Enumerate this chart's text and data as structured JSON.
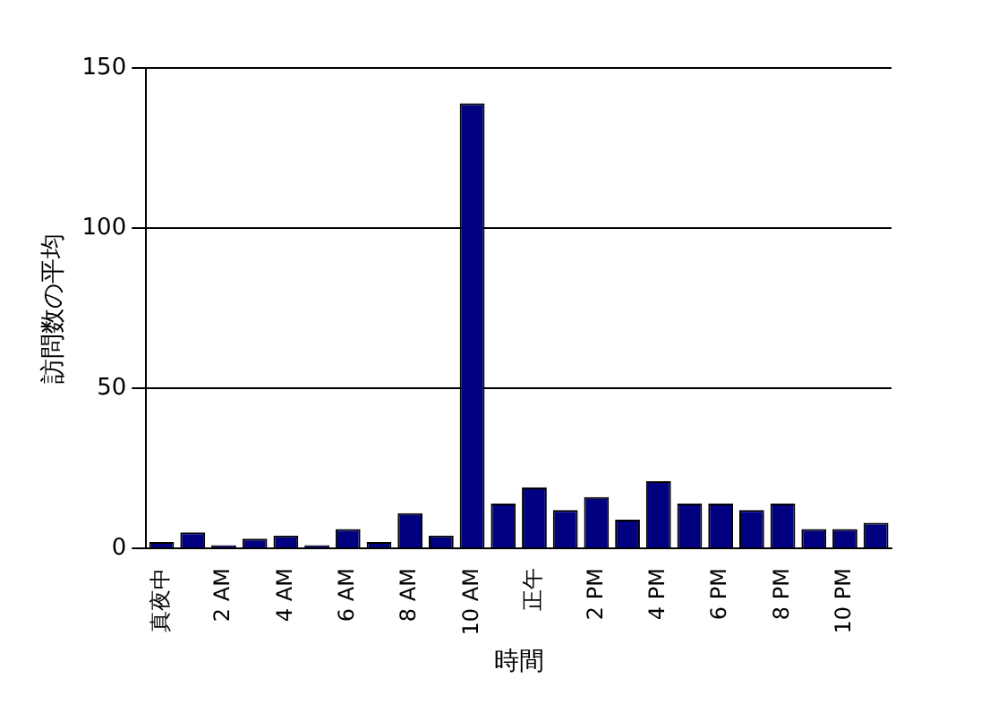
{
  "chart_data": {
    "type": "bar",
    "xlabel": "時間",
    "ylabel": "訪問数の平均",
    "categories": [
      "真夜中",
      null,
      "2 AM",
      null,
      "4 AM",
      null,
      "6 AM",
      null,
      "8 AM",
      null,
      "10 AM",
      null,
      "正午",
      null,
      "2 PM",
      null,
      "4 PM",
      null,
      "6 PM",
      null,
      "8 PM",
      null,
      "10 PM",
      null
    ],
    "values": [
      2,
      5,
      1,
      3,
      4,
      1,
      6,
      2,
      11,
      4,
      139,
      14,
      19,
      12,
      16,
      9,
      21,
      14,
      14,
      12,
      14,
      6,
      6,
      8
    ],
    "color": "#000080",
    "ylim": [
      0,
      150
    ],
    "yticks": [
      0,
      50,
      100,
      150
    ],
    "grid": "y"
  }
}
